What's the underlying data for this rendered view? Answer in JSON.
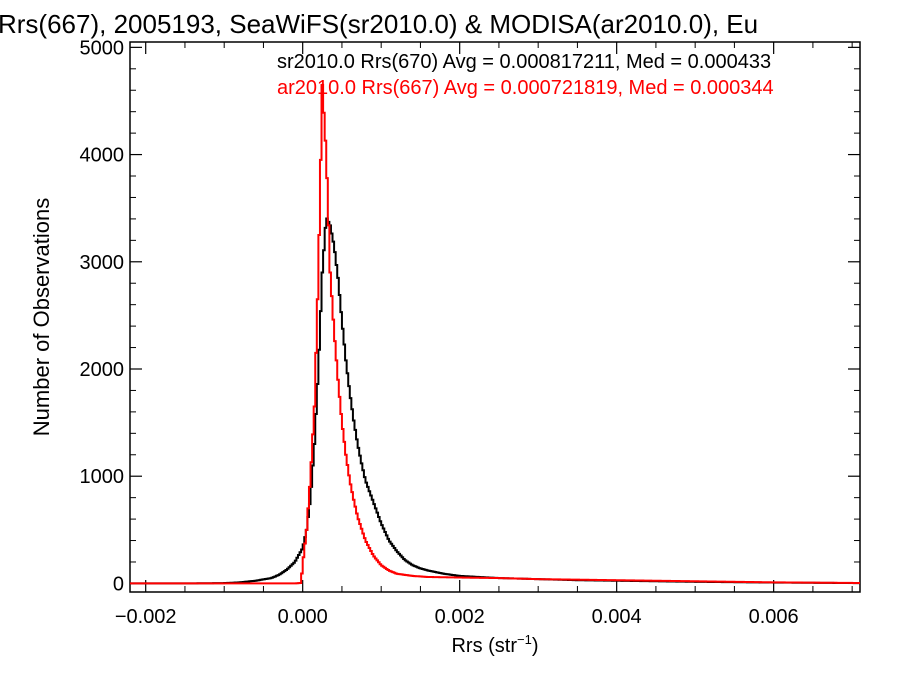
{
  "chart_data": {
    "type": "line",
    "title": "Rrs(667), 2005193, SeaWiFS(sr2010.0) & MODISA(ar2010.0), Eu",
    "xlabel": "Rrs (str",
    "xlabel_sup": "−1",
    "xlabel_end": ")",
    "ylabel": "Number of Observations",
    "xlim": [
      -0.0022,
      0.0071
    ],
    "ylim": [
      -80,
      5050
    ],
    "x_ticks": [
      -0.002,
      0.0,
      0.002,
      0.004,
      0.006
    ],
    "x_tick_labels": [
      "−0.002",
      "0.000",
      "0.002",
      "0.004",
      "0.006"
    ],
    "y_ticks": [
      0,
      1000,
      2000,
      3000,
      4000,
      5000
    ],
    "y_tick_labels": [
      "0",
      "1000",
      "2000",
      "3000",
      "4000",
      "5000"
    ],
    "legend_placement": "top-right",
    "series": [
      {
        "name": "sr2010.0 Rrs(670) Avg = 0.000817211, Med = 0.000433",
        "color": "#000000",
        "points": [
          [
            -0.0022,
            0
          ],
          [
            -0.0015,
            0
          ],
          [
            -0.001,
            3
          ],
          [
            -0.0008,
            10
          ],
          [
            -0.0006,
            25
          ],
          [
            -0.0004,
            50
          ],
          [
            -0.0003,
            80
          ],
          [
            -0.0002,
            130
          ],
          [
            -0.0001,
            200
          ],
          [
            0.0,
            330
          ],
          [
            5e-05,
            500
          ],
          [
            0.0001,
            800
          ],
          [
            0.00015,
            1300
          ],
          [
            0.0002,
            2000
          ],
          [
            0.00025,
            2900
          ],
          [
            0.0003,
            3420
          ],
          [
            0.00035,
            3340
          ],
          [
            0.0004,
            3150
          ],
          [
            0.00045,
            2850
          ],
          [
            0.0005,
            2450
          ],
          [
            0.00055,
            2080
          ],
          [
            0.0006,
            1780
          ],
          [
            0.00065,
            1520
          ],
          [
            0.0007,
            1300
          ],
          [
            0.00075,
            1120
          ],
          [
            0.0008,
            960
          ],
          [
            0.0009,
            760
          ],
          [
            0.001,
            560
          ],
          [
            0.0011,
            400
          ],
          [
            0.0012,
            300
          ],
          [
            0.0013,
            220
          ],
          [
            0.0014,
            170
          ],
          [
            0.0015,
            140
          ],
          [
            0.0016,
            120
          ],
          [
            0.0018,
            90
          ],
          [
            0.002,
            70
          ],
          [
            0.0025,
            50
          ],
          [
            0.003,
            40
          ],
          [
            0.0035,
            30
          ],
          [
            0.004,
            25
          ],
          [
            0.005,
            15
          ],
          [
            0.006,
            8
          ],
          [
            0.0071,
            3
          ]
        ]
      },
      {
        "name": "ar2010.0 Rrs(667) Avg = 0.000721819, Med = 0.000344",
        "color": "#ff0000",
        "points": [
          [
            -0.0022,
            0
          ],
          [
            -0.0005,
            0
          ],
          [
            -0.0001,
            0
          ],
          [
            -2e-05,
            5
          ],
          [
            0.0,
            180
          ],
          [
            5e-05,
            500
          ],
          [
            0.0001,
            1000
          ],
          [
            0.00015,
            1650
          ],
          [
            0.0002,
            2900
          ],
          [
            0.00025,
            4650
          ],
          [
            0.0003,
            4000
          ],
          [
            0.00035,
            2900
          ],
          [
            0.0004,
            2350
          ],
          [
            0.00045,
            1900
          ],
          [
            0.0005,
            1500
          ],
          [
            0.00055,
            1200
          ],
          [
            0.0006,
            960
          ],
          [
            0.00065,
            780
          ],
          [
            0.0007,
            620
          ],
          [
            0.0008,
            400
          ],
          [
            0.0009,
            260
          ],
          [
            0.001,
            170
          ],
          [
            0.0011,
            120
          ],
          [
            0.0012,
            90
          ],
          [
            0.0014,
            70
          ],
          [
            0.0016,
            60
          ],
          [
            0.002,
            55
          ],
          [
            0.0025,
            50
          ],
          [
            0.003,
            40
          ],
          [
            0.0035,
            35
          ],
          [
            0.004,
            30
          ],
          [
            0.005,
            20
          ],
          [
            0.006,
            10
          ],
          [
            0.0071,
            4
          ]
        ]
      }
    ]
  }
}
